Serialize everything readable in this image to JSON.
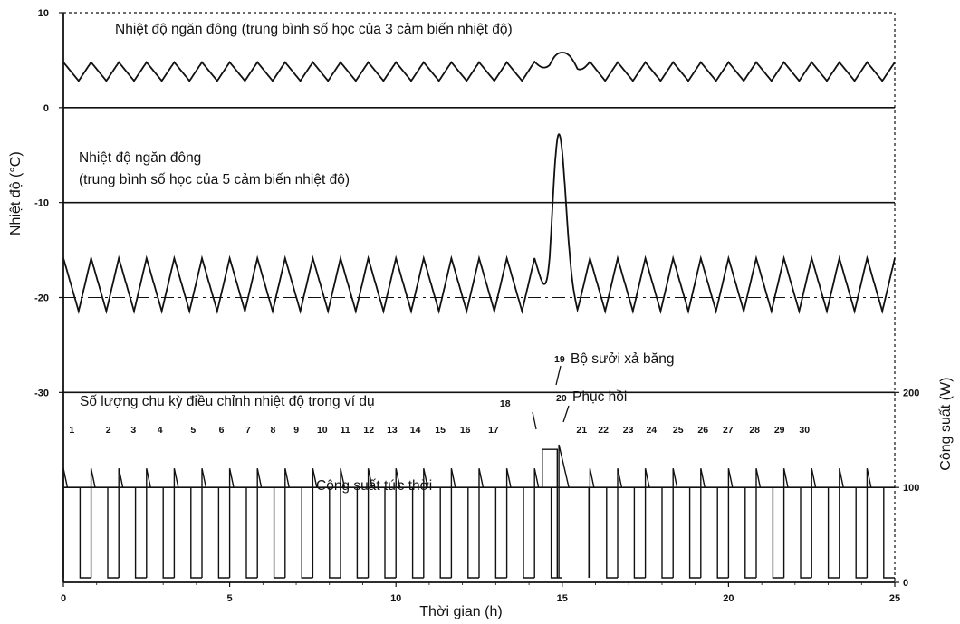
{
  "chart_data": {
    "type": "line",
    "xlabel": "Thời gian (h)",
    "ylabel": "Nhiệt độ (°C)",
    "y2label": "Công suất (W)",
    "xlim": [
      0,
      25
    ],
    "ylim": [
      -50,
      10
    ],
    "y2lim": [
      0,
      200
    ],
    "x_ticks": [
      "0",
      "5",
      "10",
      "15",
      "20",
      "25"
    ],
    "y_ticks": [
      "10",
      "0",
      "-10",
      "-20",
      "-30"
    ],
    "y2_ticks": [
      "200",
      "100",
      "0"
    ],
    "grid": "horizontal",
    "annotations": {
      "fridge_label": "Nhiệt độ ngăn đông (trung bình số học của 3 cảm biến nhiệt độ)",
      "freezer_label_1": "Nhiệt độ ngăn đông",
      "freezer_label_2": "(trung bình số học của 5 cảm biến nhiệt độ)",
      "cycles_label": "Số lượng chu kỳ điều chỉnh nhiệt độ trong ví dụ",
      "heater_label": "Bộ sưởi xả băng",
      "heater_num": "19",
      "recovery_label": "Phục hồi",
      "recovery_num": "20",
      "power_label": "Công suất tức thời"
    },
    "cycle_numbers": [
      "1",
      "2",
      "3",
      "4",
      "5",
      "6",
      "7",
      "8",
      "9",
      "10",
      "11",
      "12",
      "13",
      "14",
      "15",
      "16",
      "17",
      "18",
      "21",
      "22",
      "23",
      "24",
      "25",
      "26",
      "27",
      "28",
      "29",
      "30"
    ],
    "cycle_x": [
      1.1,
      2.2,
      2.95,
      3.75,
      4.75,
      5.6,
      6.4,
      7.15,
      7.85,
      8.55,
      9.25,
      9.95,
      10.65,
      11.35,
      12.1,
      12.85,
      13.7,
      14.05,
      16.35,
      17.0,
      17.75,
      18.45,
      19.25,
      20.0,
      20.75,
      21.55,
      22.3,
      23.05
    ],
    "series": [
      {
        "name": "Nhiệt độ ngăn đông (trung bình số học của 3 cảm biến nhiệt độ)",
        "axis": "left",
        "cycles": 30,
        "min": 2.8,
        "max": 4.8,
        "peak": {
          "x": 15.0,
          "y": 5.8
        }
      },
      {
        "name": "Nhiệt độ ngăn đông (trung bình số học của 5 cảm biến nhiệt độ)",
        "axis": "left",
        "cycles": 30,
        "min": -21.5,
        "max": -15.8,
        "peak": {
          "x": 14.9,
          "y": -2.8
        }
      },
      {
        "name": "Công suất tức thời",
        "axis": "right",
        "on_value": 100,
        "off_value": 0,
        "start_spike": 120,
        "defrost": {
          "start": 14.4,
          "end": 14.85,
          "value": 140
        },
        "recovery_peak": 145
      }
    ]
  }
}
